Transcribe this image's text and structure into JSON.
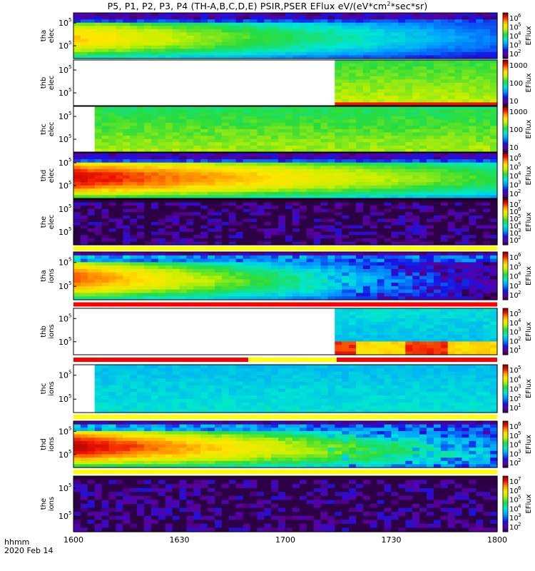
{
  "title": "P5, P1, P2, P3, P4 (TH-A,B,C,D,E) PSIR,PSER EFlux eV/(eV*cm",
  "title_sup": "2",
  "title_tail": "*sec*sr)",
  "chart_data": {
    "type": "heatmap",
    "x_ticks": [
      "1600",
      "1630",
      "1700",
      "1730",
      "1800"
    ],
    "footer_line1": "hhmm",
    "footer_line2": "2020 Feb 14",
    "colorbar_label": "EFlux",
    "panels": [
      {
        "id": "tha-elec",
        "ylabel": [
          "tha",
          "elec"
        ],
        "yticks": [
          "10",
          "10"
        ],
        "yticks_exp": [
          "5",
          "5"
        ],
        "cb_ticks": [
          [
            "10",
            "6"
          ],
          [
            "10",
            "5"
          ],
          [
            "10",
            "4"
          ],
          [
            "10",
            "3"
          ],
          [
            "10",
            "2"
          ]
        ],
        "profile": "elec_full",
        "peak": 0.78,
        "decay": 0.55,
        "bar": false
      },
      {
        "id": "thb-elec",
        "ylabel": [
          "thb",
          "elec"
        ],
        "yticks": [
          "10",
          "10"
        ],
        "yticks_exp": [
          "5",
          "5"
        ],
        "cb_ticks": [
          [
            "1000",
            ""
          ],
          [
            "100",
            ""
          ],
          [
            "10",
            ""
          ]
        ],
        "profile": "late_block",
        "start": 0.615,
        "peak": 0.62,
        "decay": 0.1,
        "bar": false
      },
      {
        "id": "thc-elec",
        "ylabel": [
          "thc",
          "elec"
        ],
        "yticks": [
          "10",
          "10"
        ],
        "yticks_exp": [
          "5",
          "5"
        ],
        "cb_ticks": [
          [
            "1000",
            ""
          ],
          [
            "100",
            ""
          ],
          [
            "10",
            ""
          ]
        ],
        "profile": "flat_block",
        "start": 0.053,
        "peak": 0.52,
        "decay": 0.05,
        "bar": false
      },
      {
        "id": "thd-elec",
        "ylabel": [
          "thd",
          "elec"
        ],
        "yticks": [
          "10",
          "10"
        ],
        "yticks_exp": [
          "5",
          "5"
        ],
        "cb_ticks": [
          [
            "10",
            "6"
          ],
          [
            "10",
            "5"
          ],
          [
            "10",
            "4"
          ],
          [
            "10",
            "3"
          ],
          [
            "10",
            "2"
          ]
        ],
        "profile": "elec_full",
        "peak": 0.95,
        "decay": 0.45,
        "bar": false
      },
      {
        "id": "the-elec",
        "ylabel": [
          "the",
          "elec"
        ],
        "yticks": [
          "10",
          "10"
        ],
        "yticks_exp": [
          "5",
          "5"
        ],
        "cb_ticks": [
          [
            "10",
            "7"
          ],
          [
            "10",
            "6"
          ],
          [
            "10",
            "5"
          ],
          [
            "10",
            "4"
          ],
          [
            "10",
            "3"
          ],
          [
            "10",
            "2"
          ]
        ],
        "profile": "noise",
        "bar": true
      },
      {
        "id": "tha-ions",
        "ylabel": [
          "tha",
          "ions"
        ],
        "yticks": [
          "10",
          "10"
        ],
        "yticks_exp": [
          "5",
          "5"
        ],
        "cb_ticks": [
          [
            "10",
            "6"
          ],
          [
            "10",
            "5"
          ],
          [
            "10",
            "4"
          ],
          [
            "10",
            "3"
          ],
          [
            "10",
            "2"
          ]
        ],
        "profile": "ions_full",
        "peak": 0.88,
        "decay": 0.75,
        "bar": true
      },
      {
        "id": "thb-ions",
        "ylabel": [
          "thb",
          "ions"
        ],
        "yticks": [
          "10",
          "10"
        ],
        "yticks_exp": [
          "5",
          "5"
        ],
        "cb_ticks": [
          [
            "10",
            "5"
          ],
          [
            "10",
            "4"
          ],
          [
            "10",
            "3"
          ],
          [
            "10",
            "2"
          ],
          [
            "10",
            "1"
          ]
        ],
        "profile": "late_ions",
        "start": 0.615,
        "bar": true
      },
      {
        "id": "thc-ions",
        "ylabel": [
          "thc",
          "ions"
        ],
        "yticks": [
          "10",
          "10"
        ],
        "yticks_exp": [
          "5",
          "5"
        ],
        "cb_ticks": [
          [
            "10",
            "5"
          ],
          [
            "10",
            "4"
          ],
          [
            "10",
            "3"
          ],
          [
            "10",
            "2"
          ],
          [
            "10",
            "1"
          ]
        ],
        "profile": "cyan_block",
        "start": 0.053,
        "bar": true
      },
      {
        "id": "thd-ions",
        "ylabel": [
          "thd",
          "ions"
        ],
        "yticks": [
          "10",
          "10"
        ],
        "yticks_exp": [
          "5",
          "5"
        ],
        "cb_ticks": [
          [
            "10",
            "6"
          ],
          [
            "10",
            "5"
          ],
          [
            "10",
            "4"
          ],
          [
            "10",
            "3"
          ],
          [
            "10",
            "2"
          ]
        ],
        "profile": "ions_full",
        "peak": 0.97,
        "decay": 0.6,
        "bar": true
      },
      {
        "id": "the-ions",
        "ylabel": [
          "the",
          "ions"
        ],
        "yticks": [
          "10",
          "10"
        ],
        "yticks_exp": [
          "5",
          "5"
        ],
        "cb_ticks": [
          [
            "10",
            "7"
          ],
          [
            "10",
            "6"
          ],
          [
            "10",
            "5"
          ],
          [
            "10",
            "4"
          ],
          [
            "10",
            "3"
          ],
          [
            "10",
            "2"
          ]
        ],
        "profile": "noise",
        "bar": false
      }
    ]
  }
}
